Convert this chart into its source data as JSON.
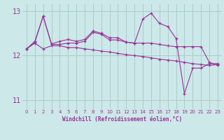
{
  "xlabel": "Windchill (Refroidissement éolien,°C)",
  "background_color": "#cce8e8",
  "grid_color": "#aacccc",
  "line_color": "#993399",
  "x": [
    0,
    1,
    2,
    3,
    4,
    5,
    6,
    7,
    8,
    9,
    10,
    11,
    12,
    13,
    14,
    15,
    16,
    17,
    18,
    19,
    20,
    21,
    22,
    23
  ],
  "line1": [
    12.15,
    12.28,
    12.15,
    12.22,
    12.22,
    12.18,
    12.18,
    12.15,
    12.13,
    12.1,
    12.08,
    12.05,
    12.02,
    12.0,
    11.98,
    11.95,
    11.92,
    11.9,
    11.88,
    11.85,
    11.82,
    11.8,
    11.78,
    11.8
  ],
  "line2": [
    12.15,
    12.3,
    12.88,
    12.25,
    12.25,
    12.28,
    12.28,
    12.32,
    12.52,
    12.48,
    12.35,
    12.35,
    12.3,
    12.28,
    12.28,
    12.28,
    12.25,
    12.22,
    12.2,
    12.2,
    12.2,
    12.2,
    11.85,
    11.78
  ],
  "line3": [
    12.15,
    12.32,
    12.88,
    12.26,
    12.32,
    12.36,
    12.32,
    12.36,
    12.55,
    12.5,
    12.4,
    12.4,
    12.3,
    12.28,
    12.82,
    12.95,
    12.72,
    12.65,
    12.38,
    11.15,
    11.72,
    11.72,
    11.82,
    11.82
  ],
  "ylim": [
    10.8,
    13.15
  ],
  "yticks": [
    11,
    12,
    13
  ],
  "xticks": [
    0,
    1,
    2,
    3,
    4,
    5,
    6,
    7,
    8,
    9,
    10,
    11,
    12,
    13,
    14,
    15,
    16,
    17,
    18,
    19,
    20,
    21,
    22,
    23
  ]
}
